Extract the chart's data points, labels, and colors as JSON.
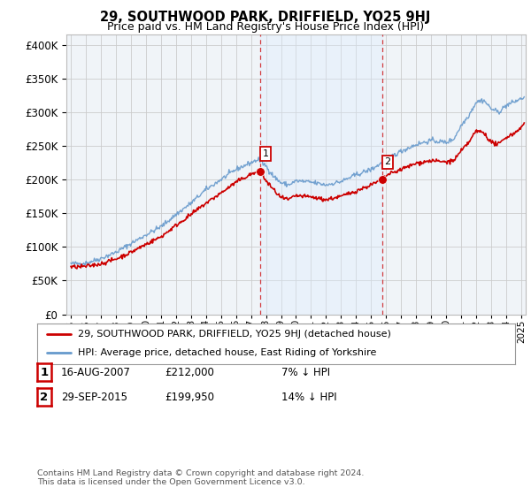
{
  "title": "29, SOUTHWOOD PARK, DRIFFIELD, YO25 9HJ",
  "subtitle": "Price paid vs. HM Land Registry's House Price Index (HPI)",
  "ytick_values": [
    0,
    50000,
    100000,
    150000,
    200000,
    250000,
    300000,
    350000,
    400000
  ],
  "ylim": [
    0,
    415000
  ],
  "xlim_start": 1994.7,
  "xlim_end": 2025.3,
  "hpi_color": "#6699cc",
  "price_color": "#cc0000",
  "shade_color": "#ddeeff",
  "marker1_x": 2007.62,
  "marker1_y": 212000,
  "marker2_x": 2015.75,
  "marker2_y": 199950,
  "dashed_x1": 2007.62,
  "dashed_x2": 2015.75,
  "legend_label1": "29, SOUTHWOOD PARK, DRIFFIELD, YO25 9HJ (detached house)",
  "legend_label2": "HPI: Average price, detached house, East Riding of Yorkshire",
  "table_rows": [
    {
      "num": "1",
      "date": "16-AUG-2007",
      "price": "£212,000",
      "pct": "7% ↓ HPI"
    },
    {
      "num": "2",
      "date": "29-SEP-2015",
      "price": "£199,950",
      "pct": "14% ↓ HPI"
    }
  ],
  "footnote": "Contains HM Land Registry data © Crown copyright and database right 2024.\nThis data is licensed under the Open Government Licence v3.0.",
  "xtick_years": [
    1995,
    1996,
    1997,
    1998,
    1999,
    2000,
    2001,
    2002,
    2003,
    2004,
    2005,
    2006,
    2007,
    2008,
    2009,
    2010,
    2011,
    2012,
    2013,
    2014,
    2015,
    2016,
    2017,
    2018,
    2019,
    2020,
    2021,
    2022,
    2023,
    2024,
    2025
  ],
  "background_color": "#ffffff",
  "chart_bg_color": "#f0f4f8",
  "grid_color": "#cccccc"
}
